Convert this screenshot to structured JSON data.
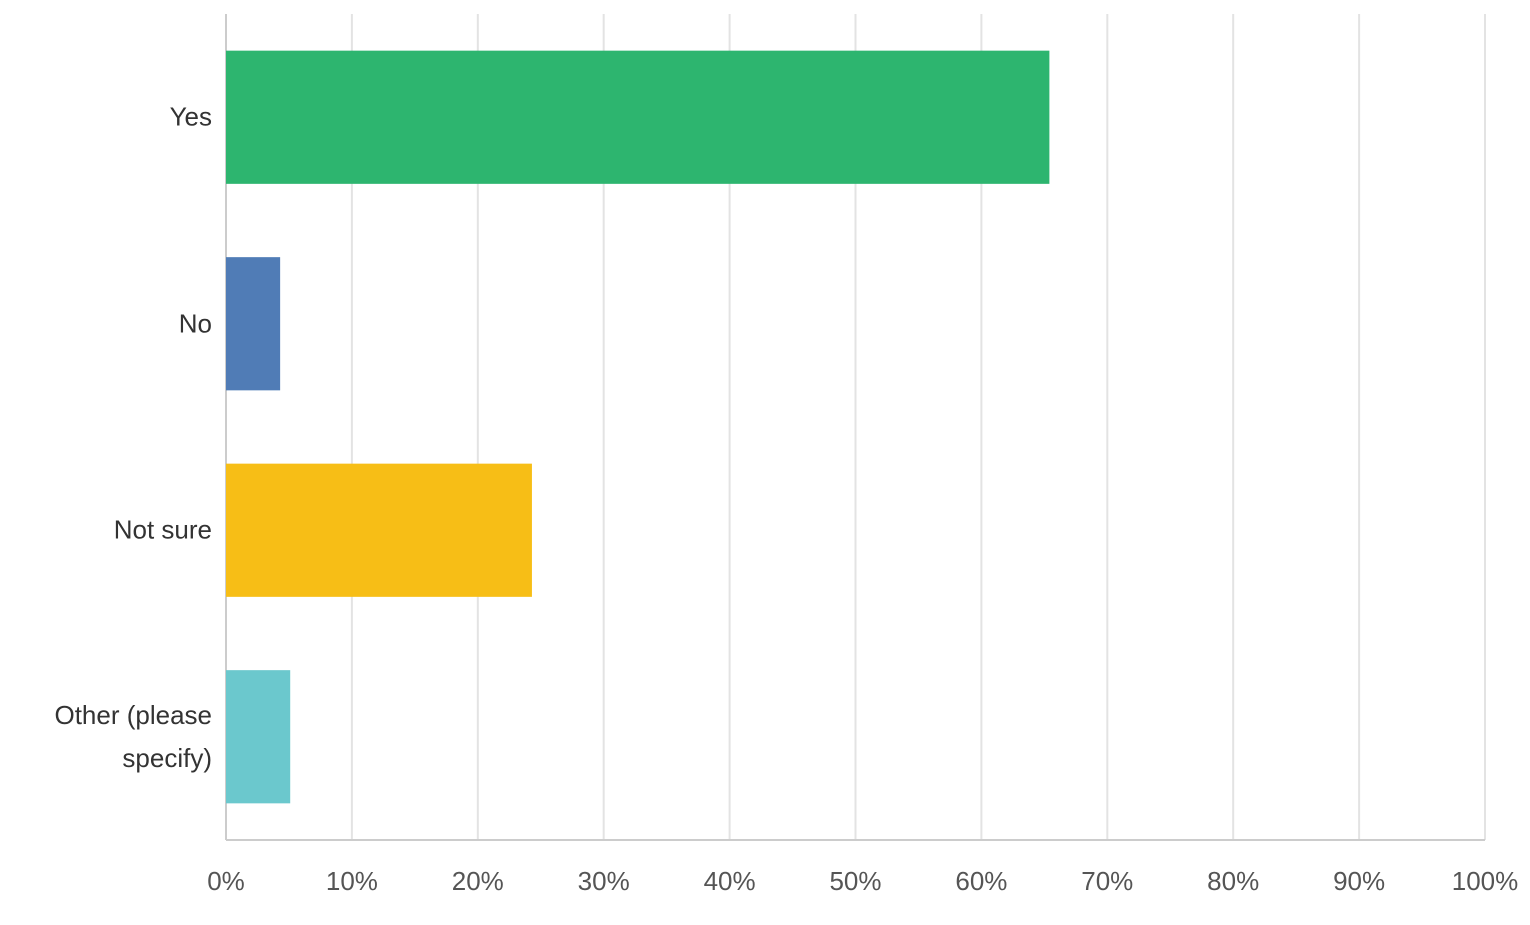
{
  "chart_data": {
    "type": "bar",
    "orientation": "horizontal",
    "categories": [
      "Yes",
      "No",
      "Not sure",
      "Other (please specify)"
    ],
    "values": [
      65.4,
      4.3,
      24.3,
      5.1
    ],
    "colors": [
      "#2db56f",
      "#507cb6",
      "#f7be16",
      "#6bc8cd"
    ],
    "xlim": [
      0,
      100
    ],
    "xticks": [
      {
        "value": 0,
        "label": "0%"
      },
      {
        "value": 10,
        "label": "10%"
      },
      {
        "value": 20,
        "label": "20%"
      },
      {
        "value": 30,
        "label": "30%"
      },
      {
        "value": 40,
        "label": "40%"
      },
      {
        "value": 50,
        "label": "50%"
      },
      {
        "value": 60,
        "label": "60%"
      },
      {
        "value": 70,
        "label": "70%"
      },
      {
        "value": 80,
        "label": "80%"
      },
      {
        "value": 90,
        "label": "90%"
      },
      {
        "value": 100,
        "label": "100%"
      }
    ],
    "grid": true
  }
}
